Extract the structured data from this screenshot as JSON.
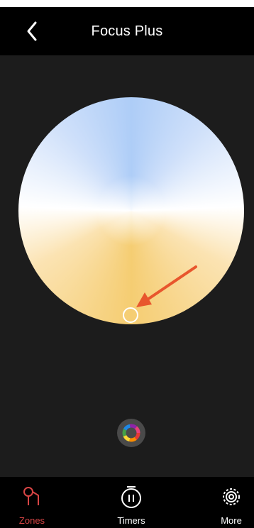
{
  "header": {
    "title": "Focus Plus"
  },
  "icons": {
    "back": "chevron-left-icon",
    "mode": "color-wheel-icon"
  },
  "wheel": {
    "type": "color-temperature-wheel"
  },
  "tabs": [
    {
      "label": "Zones",
      "icon": "zones-icon",
      "active": true
    },
    {
      "label": "Timers",
      "icon": "timer-icon",
      "active": false
    },
    {
      "label": "More",
      "icon": "gear-icon",
      "active": false
    }
  ],
  "colors": {
    "active_tab": "#d84545",
    "arrow": "#e8562d",
    "header_bg": "#000000",
    "body_bg": "#1c1c1c"
  }
}
